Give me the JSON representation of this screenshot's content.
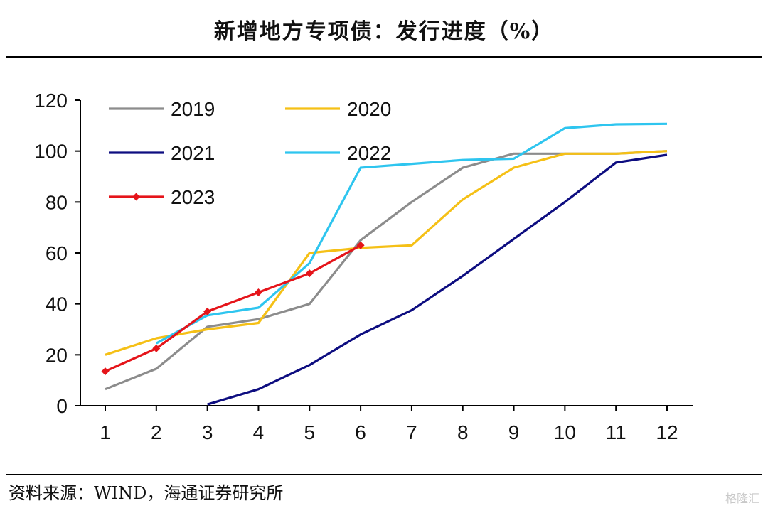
{
  "header": {
    "title": "新增地方专项债：发行进度（%）"
  },
  "footer": {
    "source": "资料来源：WIND，海通证券研究所",
    "watermark": "格隆汇"
  },
  "chart_data": {
    "type": "line",
    "title": "新增地方专项债：发行进度（%）",
    "xlabel": "",
    "ylabel": "",
    "x": [
      1,
      2,
      3,
      4,
      5,
      6,
      7,
      8,
      9,
      10,
      11,
      12
    ],
    "xlim": [
      1,
      12
    ],
    "ylim": [
      0,
      120
    ],
    "yticks": [
      0,
      20,
      40,
      60,
      80,
      100,
      120
    ],
    "grid": false,
    "legend_position": "top-left",
    "series": [
      {
        "name": "2019",
        "color": "#8c8c8c",
        "marker": "none",
        "values": [
          6.5,
          14.5,
          31,
          34,
          40,
          65,
          80,
          93.5,
          99,
          99,
          99,
          100
        ]
      },
      {
        "name": "2020",
        "color": "#f5c016",
        "marker": "none",
        "values": [
          20,
          26.5,
          30,
          32.5,
          60,
          62,
          63,
          81,
          93.5,
          99,
          99,
          100
        ]
      },
      {
        "name": "2021",
        "color": "#0d0d80",
        "marker": "none",
        "values": [
          null,
          null,
          0.5,
          6.5,
          16,
          28,
          37.5,
          51,
          65.5,
          80,
          95.5,
          98.5
        ]
      },
      {
        "name": "2022",
        "color": "#2ec5ef",
        "marker": "none",
        "values": [
          null,
          24.5,
          35.5,
          38.5,
          56,
          93.5,
          95,
          96.5,
          97,
          109,
          110.5,
          110.7
        ]
      },
      {
        "name": "2023",
        "color": "#e5141a",
        "marker": "diamond",
        "values": [
          13.5,
          22.5,
          37,
          44.5,
          52,
          63,
          null,
          null,
          null,
          null,
          null,
          null
        ]
      }
    ]
  }
}
